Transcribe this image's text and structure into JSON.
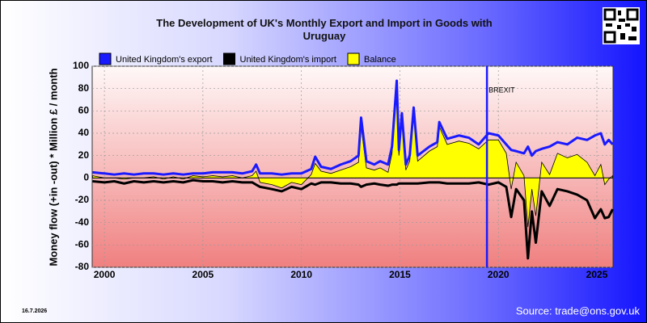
{
  "chart_data": {
    "type": "line",
    "title": "The Development of UK's Monthly Export and Import in Goods with Uruguay",
    "y_label": "Money flow (+in -out) * Million £ / month",
    "date_stamp": "16.7.2026",
    "source": "Source: trade@ons.gov.uk",
    "annotation": {
      "text": "BREXIT",
      "x": 2019.42,
      "color": "#1a1aff"
    },
    "x": [
      1999.4,
      2000,
      2000.5,
      2001,
      2001.5,
      2002,
      2002.5,
      2003,
      2003.5,
      2004,
      2004.5,
      2005,
      2005.5,
      2006,
      2006.5,
      2007,
      2007.5,
      2007.7,
      2007.9,
      2008.5,
      2009,
      2009.5,
      2010,
      2010.5,
      2010.7,
      2011,
      2011.5,
      2012,
      2012.5,
      2012.9,
      2013.03,
      2013.3,
      2013.7,
      2014,
      2014.4,
      2014.6,
      2014.84,
      2014.95,
      2015.1,
      2015.3,
      2015.5,
      2015.7,
      2015.9,
      2016.5,
      2016.9,
      2017.0,
      2017.4,
      2018,
      2018.5,
      2019,
      2019.5,
      2020,
      2020.4,
      2020.65,
      2020.9,
      2021.3,
      2021.5,
      2021.7,
      2021.9,
      2022.2,
      2022.6,
      2023,
      2023.5,
      2024,
      2024.5,
      2024.9,
      2025.2,
      2025.4,
      2025.6,
      2025.8
    ],
    "series": [
      {
        "name": "Balance",
        "color": "#ffff00",
        "fill": true,
        "values": [
          2,
          0,
          0,
          -1,
          0,
          0,
          1,
          -1,
          1,
          -1,
          2,
          1,
          2,
          1,
          2,
          0,
          2,
          6,
          -4,
          -6,
          -9,
          -4,
          -6,
          3,
          13,
          6,
          4,
          7,
          10,
          14,
          46,
          9,
          7,
          9,
          5,
          22,
          81,
          20,
          53,
          7,
          15,
          58,
          15,
          24,
          28,
          46,
          30,
          33,
          31,
          26,
          34,
          34,
          22,
          -10,
          14,
          2,
          -44,
          -10,
          -34,
          14,
          3,
          22,
          18,
          21,
          14,
          2,
          12,
          -6,
          -1,
          2
        ]
      },
      {
        "name": "United Kingdom's import",
        "color": "#000000",
        "values": [
          -3,
          -4,
          -3,
          -5,
          -3,
          -4,
          -3,
          -4,
          -3,
          -4,
          -2,
          -3,
          -3,
          -4,
          -3,
          -4,
          -4,
          -6,
          -8,
          -10,
          -12,
          -8,
          -10,
          -5,
          -6,
          -4,
          -4,
          -5,
          -5,
          -6,
          -8,
          -6,
          -5,
          -6,
          -7,
          -6,
          -6,
          -5,
          -5,
          -5,
          -5,
          -5,
          -5,
          -4,
          -4,
          -4,
          -5,
          -5,
          -5,
          -4,
          -6,
          -4,
          -8,
          -35,
          -10,
          -20,
          -72,
          -30,
          -58,
          -12,
          -25,
          -10,
          -12,
          -15,
          -20,
          -36,
          -28,
          -36,
          -35,
          -28
        ]
      },
      {
        "name": "United Kingdom's export",
        "color": "#1a1aff",
        "values": [
          5,
          4,
          3,
          4,
          3,
          4,
          4,
          3,
          4,
          3,
          4,
          4,
          5,
          5,
          5,
          4,
          6,
          12,
          4,
          4,
          3,
          4,
          4,
          8,
          19,
          10,
          8,
          12,
          15,
          20,
          54,
          15,
          12,
          15,
          12,
          28,
          87,
          25,
          58,
          12,
          20,
          63,
          20,
          28,
          32,
          50,
          35,
          38,
          36,
          30,
          40,
          38,
          30,
          25,
          24,
          22,
          28,
          20,
          24,
          26,
          28,
          32,
          30,
          36,
          34,
          38,
          40,
          30,
          34,
          30
        ]
      }
    ],
    "legend_order": [
      2,
      1,
      0
    ],
    "xlim": [
      1999.38,
      2025.82
    ],
    "xticks": [
      2000,
      2005,
      2010,
      2015,
      2020,
      2025
    ],
    "ylim": [
      -80,
      100
    ],
    "yticks": [
      -80,
      -60,
      -40,
      -20,
      0,
      20,
      40,
      60,
      80,
      100
    ],
    "grid": true
  }
}
